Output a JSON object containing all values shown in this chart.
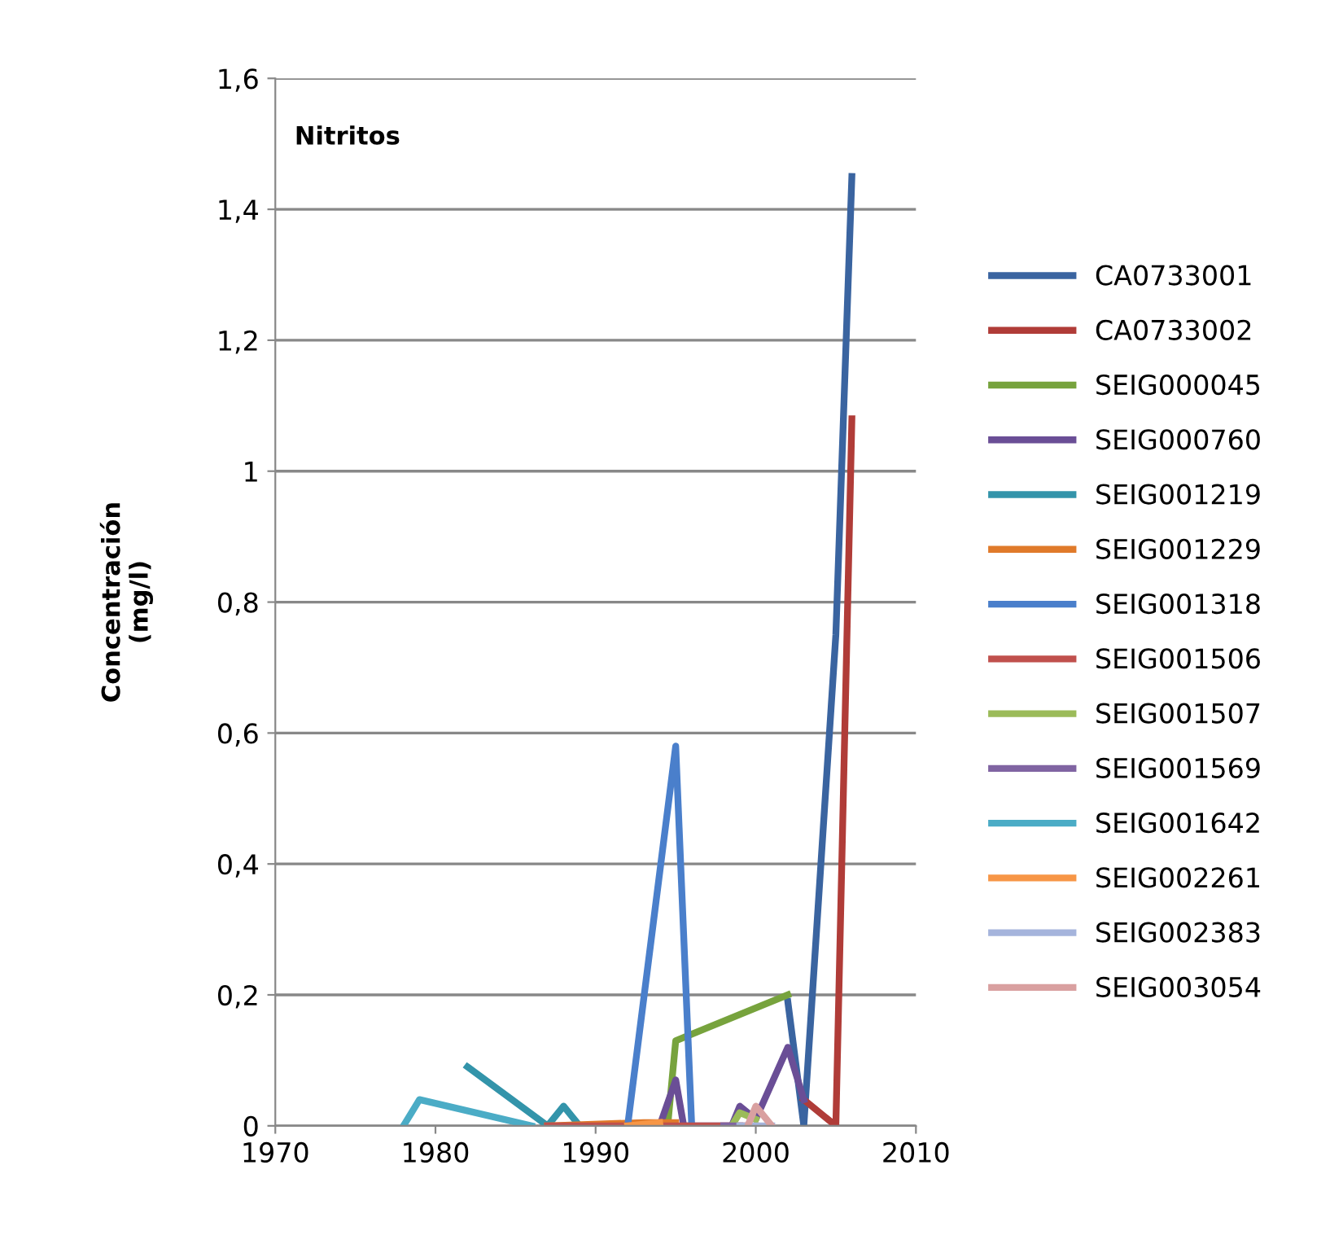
{
  "chart_data": {
    "type": "line",
    "title": "Nitritos",
    "ylabel": "Concentración\n(mg/l)",
    "xlim": [
      1970,
      2010
    ],
    "xticks": [
      1970,
      1980,
      1990,
      2000,
      2010
    ],
    "ylim": [
      0,
      1.6
    ],
    "yticks": [
      {
        "value": 0,
        "label": "0"
      },
      {
        "value": 0.2,
        "label": "0,2"
      },
      {
        "value": 0.4,
        "label": "0,4"
      },
      {
        "value": 0.6,
        "label": "0,6"
      },
      {
        "value": 0.8,
        "label": "0,8"
      },
      {
        "value": 1,
        "label": "1"
      },
      {
        "value": 1.2,
        "label": "1,2"
      },
      {
        "value": 1.4,
        "label": "1,4"
      },
      {
        "value": 1.6,
        "label": "1,6"
      }
    ],
    "grid": "y",
    "legend": "right",
    "marker": "none",
    "line_style": "solid",
    "series": [
      {
        "name": "CA0733001",
        "color": "#3a64a0",
        "x": [
          2002,
          2003,
          2005,
          2006
        ],
        "values": [
          0.19,
          0,
          0.75,
          1.45
        ]
      },
      {
        "name": "CA0733002",
        "color": "#b03c38",
        "x": [
          2003,
          2005,
          2006
        ],
        "values": [
          0.04,
          0,
          1.08
        ]
      },
      {
        "name": "SEIG000045",
        "color": "#77a33d",
        "x": [
          1994.5,
          1995,
          2002
        ],
        "values": [
          0,
          0.13,
          0.2
        ]
      },
      {
        "name": "SEIG000760",
        "color": "#6a4e96",
        "x": [
          1994,
          1995,
          1995.5,
          1998.5,
          1999,
          2000,
          2002,
          2003
        ],
        "values": [
          0,
          0.07,
          0,
          0,
          0.03,
          0.01,
          0.12,
          0.04
        ]
      },
      {
        "name": "SEIG001219",
        "color": "#3394aa",
        "x": [
          1982,
          1987,
          1988,
          1989
        ],
        "values": [
          0.09,
          0,
          0.03,
          0
        ]
      },
      {
        "name": "SEIG001229",
        "color": "#e07a2a",
        "x": [
          1987,
          1993,
          1995
        ],
        "values": [
          0,
          0.005,
          0.005
        ]
      },
      {
        "name": "SEIG001318",
        "color": "#4a7fcb",
        "x": [
          1992,
          1995,
          1996
        ],
        "values": [
          0,
          0.58,
          0
        ]
      },
      {
        "name": "SEIG001506",
        "color": "#c0504d",
        "x": [
          1987,
          2000
        ],
        "values": [
          0,
          0
        ]
      },
      {
        "name": "SEIG001507",
        "color": "#9bbb59",
        "x": [
          1998.5,
          1999,
          2000
        ],
        "values": [
          0,
          0.02,
          0.01
        ]
      },
      {
        "name": "SEIG001569",
        "color": "#8064a2",
        "x": [
          1998,
          1999
        ],
        "values": [
          0,
          0
        ]
      },
      {
        "name": "SEIG001642",
        "color": "#4bacc6",
        "x": [
          1978,
          1979,
          1986
        ],
        "values": [
          0,
          0.04,
          0
        ]
      },
      {
        "name": "SEIG002261",
        "color": "#f79646",
        "x": [
          1992,
          1994
        ],
        "values": [
          0,
          0.005
        ]
      },
      {
        "name": "SEIG002383",
        "color": "#a5b4dc",
        "x": [
          1999,
          2001
        ],
        "values": [
          0,
          0
        ]
      },
      {
        "name": "SEIG003054",
        "color": "#d9a0a0",
        "x": [
          1999.5,
          2000,
          2001
        ],
        "values": [
          0,
          0.03,
          0
        ]
      }
    ]
  }
}
